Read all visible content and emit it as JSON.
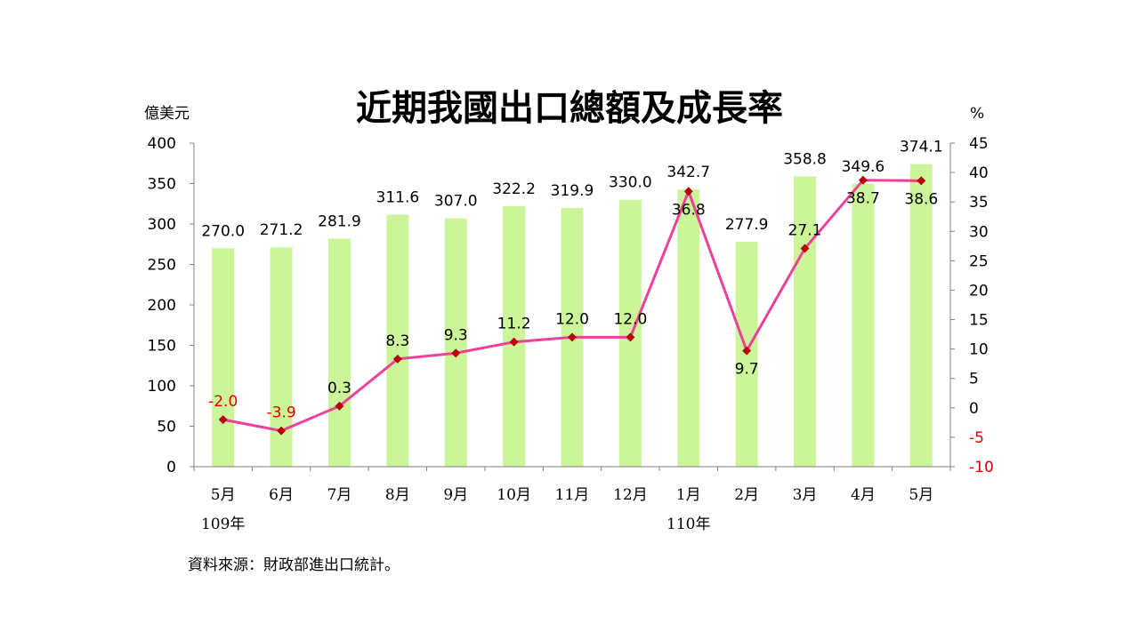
{
  "chart_data": {
    "type": "bar",
    "title": "近期我國出口總額及成長率",
    "categories": [
      "5月",
      "6月",
      "7月",
      "8月",
      "9月",
      "10月",
      "11月",
      "12月",
      "1月",
      "2月",
      "3月",
      "4月",
      "5月"
    ],
    "year_labels": [
      {
        "category_index": 0,
        "label": "109年"
      },
      {
        "category_index": 8,
        "label": "110年"
      }
    ],
    "series": [
      {
        "type": "bar",
        "axis": "left",
        "color": "#ccf59a",
        "values": [
          270.0,
          271.2,
          281.9,
          311.6,
          307.0,
          322.2,
          319.9,
          330.0,
          342.7,
          277.9,
          358.8,
          349.6,
          374.1
        ],
        "labels": [
          "270.0",
          "271.2",
          "281.9",
          "311.6",
          "307.0",
          "322.2",
          "319.9",
          "330.0",
          "342.7",
          "277.9",
          "358.8",
          "349.6",
          "374.1"
        ]
      },
      {
        "type": "line",
        "axis": "right",
        "color": "#ee3f9a",
        "marker_color": "#c00000",
        "values": [
          -2.0,
          -3.9,
          0.3,
          8.3,
          9.3,
          11.2,
          12.0,
          12.0,
          36.8,
          9.7,
          27.1,
          38.7,
          38.6
        ],
        "labels": [
          "-2.0",
          "-3.9",
          "0.3",
          "8.3",
          "9.3",
          "11.2",
          "12.0",
          "12.0",
          "36.8",
          "9.7",
          "27.1",
          "38.7",
          "38.6"
        ]
      }
    ],
    "y_left": {
      "unit": "億美元",
      "min": 0,
      "max": 400,
      "ticks": [
        0,
        50,
        100,
        150,
        200,
        250,
        300,
        350,
        400
      ]
    },
    "y_right": {
      "unit": "%",
      "min": -10,
      "max": 45,
      "ticks": [
        -10,
        -5,
        0,
        5,
        10,
        15,
        20,
        25,
        30,
        35,
        40,
        45
      ]
    },
    "negative_label_color": "#e00000",
    "grid": false
  },
  "source_note": "資料來源：財政部進出口統計。"
}
